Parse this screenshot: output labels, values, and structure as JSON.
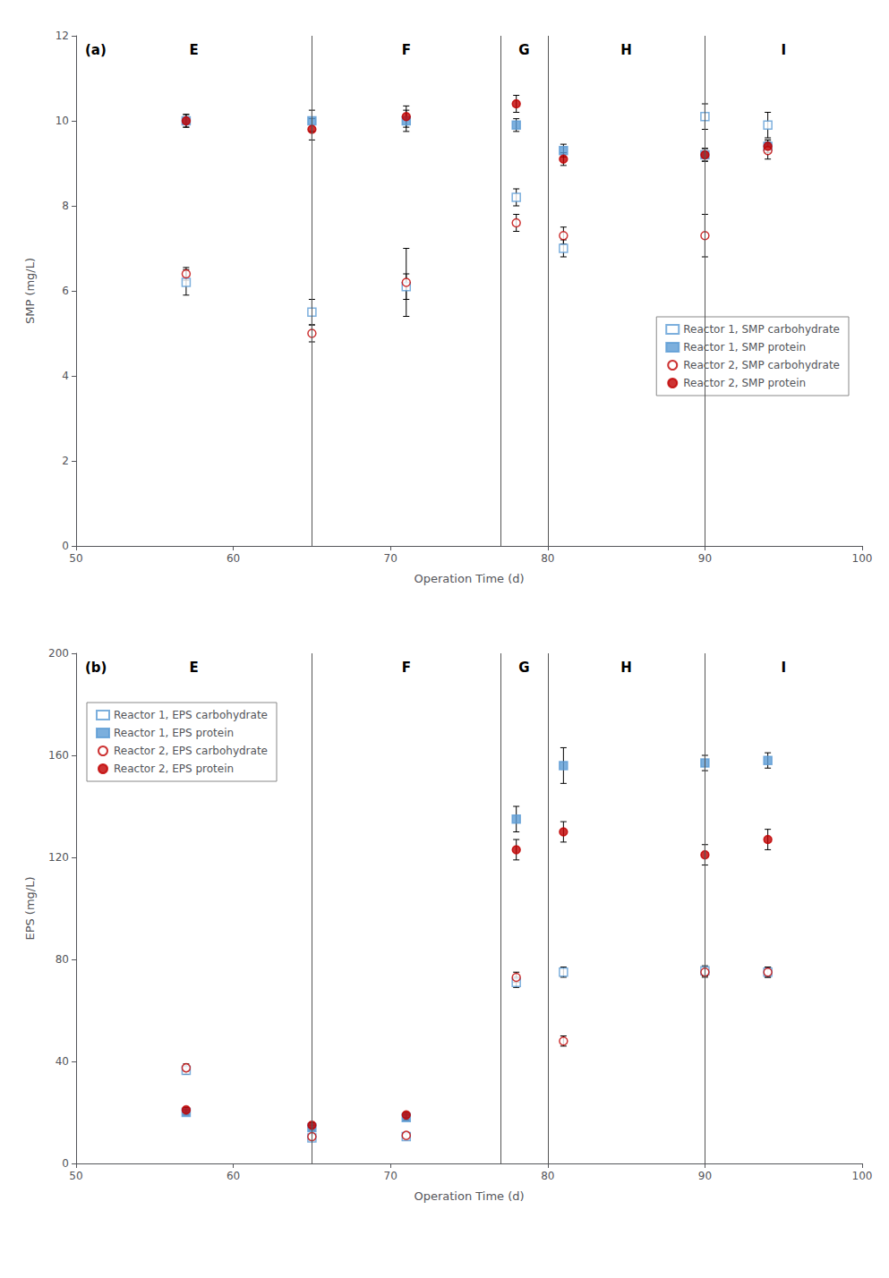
{
  "chart_data": [
    {
      "type": "scatter",
      "panel_label": "(a)",
      "xlabel": "Operation Time (d)",
      "ylabel": "SMP (mg/L)",
      "x": [
        57,
        65,
        71,
        78,
        81,
        90,
        94
      ],
      "xlim": [
        50,
        100
      ],
      "xticks": [
        50,
        60,
        70,
        80,
        90,
        100
      ],
      "ylim": [
        0,
        12
      ],
      "yticks": [
        0,
        2,
        4,
        6,
        8,
        10,
        12
      ],
      "grid": false,
      "legend": "right",
      "stage_lines": [
        65,
        77,
        80,
        90
      ],
      "stage_labels": [
        {
          "label": "E",
          "x": 57.5
        },
        {
          "label": "F",
          "x": 71.0
        },
        {
          "label": "G",
          "x": 78.5
        },
        {
          "label": "H",
          "x": 85.0
        },
        {
          "label": "I",
          "x": 95.0
        }
      ],
      "series": [
        {
          "name": "Reactor 1, SMP carbohydrate",
          "color": "#5B9BD5",
          "marker": "open-square",
          "values": [
            6.2,
            5.5,
            6.1,
            8.2,
            7.0,
            10.1,
            9.9
          ],
          "yerr": [
            0.3,
            0.3,
            0.3,
            0.2,
            0.2,
            0.3,
            0.3
          ]
        },
        {
          "name": "Reactor 1, SMP protein",
          "color": "#5B9BD5",
          "marker": "square",
          "values": [
            10.0,
            10.0,
            10.0,
            9.9,
            9.3,
            9.2,
            9.4
          ],
          "yerr": [
            0.15,
            0.25,
            0.25,
            0.15,
            0.15,
            0.15,
            0.15
          ]
        },
        {
          "name": "Reactor 2, SMP carbohydrate",
          "color": "#C00000",
          "marker": "open-circle",
          "values": [
            6.4,
            5.0,
            6.2,
            7.6,
            7.3,
            7.3,
            9.3
          ],
          "yerr": [
            0.15,
            0.2,
            0.8,
            0.2,
            0.2,
            0.5,
            0.2
          ]
        },
        {
          "name": "Reactor 2, SMP protein",
          "color": "#C00000",
          "marker": "circle",
          "values": [
            10.0,
            9.8,
            10.1,
            10.4,
            9.1,
            9.2,
            9.4
          ],
          "yerr": [
            0.15,
            0.25,
            0.25,
            0.2,
            0.15,
            0.15,
            0.15
          ]
        }
      ]
    },
    {
      "type": "scatter",
      "panel_label": "(b)",
      "xlabel": "Operation Time (d)",
      "ylabel": "EPS (mg/L)",
      "x": [
        57,
        65,
        71,
        78,
        81,
        90,
        94
      ],
      "xlim": [
        50,
        100
      ],
      "xticks": [
        50,
        60,
        70,
        80,
        90,
        100
      ],
      "ylim": [
        0,
        200
      ],
      "yticks": [
        0,
        40,
        80,
        120,
        160,
        200
      ],
      "grid": false,
      "legend": "upper left",
      "stage_lines": [
        65,
        77,
        80,
        90
      ],
      "stage_labels": [
        {
          "label": "E",
          "x": 57.5
        },
        {
          "label": "F",
          "x": 71.0
        },
        {
          "label": "G",
          "x": 78.5
        },
        {
          "label": "H",
          "x": 85.0
        },
        {
          "label": "I",
          "x": 95.0
        }
      ],
      "series": [
        {
          "name": "Reactor 1, EPS carbohydrate",
          "color": "#5B9BD5",
          "marker": "open-square",
          "values": [
            36.5,
            10.0,
            10.5,
            71.0,
            75.0,
            75.5,
            75.0
          ],
          "yerr": [
            1.5,
            1.0,
            1.0,
            2.0,
            2.0,
            2.0,
            2.0
          ]
        },
        {
          "name": "Reactor 1, EPS protein",
          "color": "#5B9BD5",
          "marker": "square",
          "values": [
            20.0,
            14.0,
            18.0,
            135.0,
            156.0,
            157.0,
            158.0
          ],
          "yerr": [
            1.0,
            1.0,
            1.0,
            5.0,
            7.0,
            3.0,
            3.0
          ]
        },
        {
          "name": "Reactor 2, EPS carbohydrate",
          "color": "#C00000",
          "marker": "open-circle",
          "values": [
            37.5,
            10.5,
            11.0,
            73.0,
            48.0,
            75.0,
            75.0
          ],
          "yerr": [
            1.5,
            1.0,
            1.0,
            2.0,
            2.0,
            2.0,
            2.0
          ]
        },
        {
          "name": "Reactor 2, EPS protein",
          "color": "#C00000",
          "marker": "circle",
          "values": [
            21.0,
            15.0,
            19.0,
            123.0,
            130.0,
            121.0,
            127.0
          ],
          "yerr": [
            1.0,
            1.0,
            1.0,
            4.0,
            4.0,
            4.0,
            4.0
          ]
        }
      ]
    }
  ]
}
